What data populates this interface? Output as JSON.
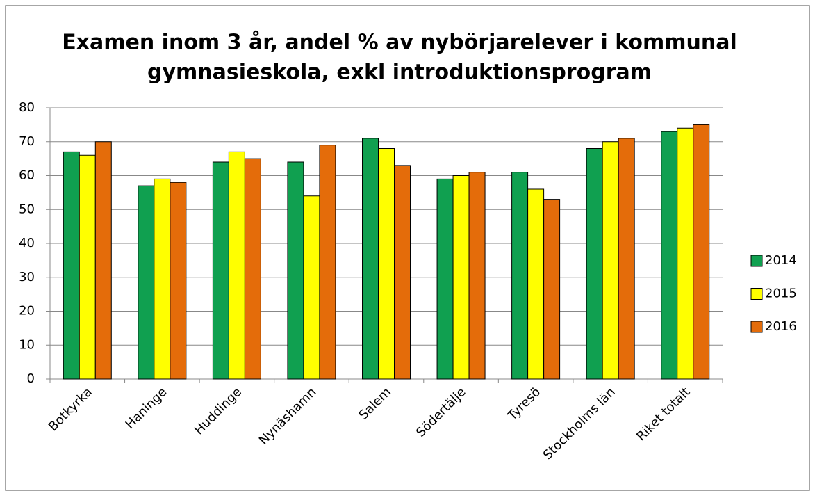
{
  "chart_data": {
    "type": "bar",
    "title": [
      "Examen inom 3 år, andel % av nybörjarelever i kommunal",
      "gymnasieskola, exkl introduktionsprogram"
    ],
    "categories": [
      "Botkyrka",
      "Haninge",
      "Huddinge",
      "Nynäshamn",
      "Salem",
      "Södertälje",
      "Tyresö",
      "Stockholms län",
      "Riket totalt"
    ],
    "series": [
      {
        "name": "2014",
        "color": "#10a050",
        "values": [
          67,
          57,
          64,
          64,
          71,
          59,
          61,
          68,
          73
        ]
      },
      {
        "name": "2015",
        "color": "#ffff00",
        "values": [
          66,
          59,
          67,
          54,
          68,
          60,
          56,
          70,
          74
        ]
      },
      {
        "name": "2016",
        "color": "#e46c0a",
        "values": [
          70,
          58,
          65,
          69,
          63,
          61,
          53,
          71,
          75
        ]
      }
    ],
    "ylim": [
      0,
      80
    ],
    "yticks": [
      0,
      10,
      20,
      30,
      40,
      50,
      60,
      70,
      80
    ],
    "grid": true,
    "legend": "right"
  }
}
